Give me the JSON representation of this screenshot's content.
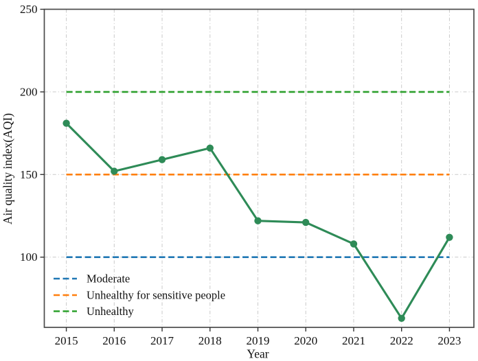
{
  "chart_data": {
    "type": "line",
    "title": "",
    "xlabel": "Year",
    "ylabel": "Air quality index(AQI)",
    "x": [
      2015,
      2016,
      2017,
      2018,
      2019,
      2020,
      2021,
      2022,
      2023
    ],
    "series": [
      {
        "name": "AQI",
        "values": [
          181,
          152,
          159,
          166,
          122,
          121,
          108,
          63,
          112
        ],
        "color": "#2e8b57",
        "marker": "circle",
        "line_style": "solid"
      }
    ],
    "reference_lines": [
      {
        "label": "Moderate",
        "value": 100,
        "color": "#1f77b4",
        "line_style": "dashed"
      },
      {
        "label": "Unhealthy for sensitive people",
        "value": 150,
        "color": "#ff7f0e",
        "line_style": "dashed"
      },
      {
        "label": "Unhealthy",
        "value": 200,
        "color": "#2ca02c",
        "line_style": "dashed"
      }
    ],
    "xticks": [
      2015,
      2016,
      2017,
      2018,
      2019,
      2020,
      2021,
      2022,
      2023
    ],
    "yticks": [
      100,
      150,
      200,
      250
    ],
    "xlim": [
      2014.54,
      2023.51
    ],
    "ylim": [
      57.5,
      250
    ],
    "grid": {
      "on": true,
      "style": "dash-dot",
      "color": "#c9c9c9"
    },
    "legend": {
      "position": "lower-left",
      "frame": false
    },
    "axis_color": "#4a4a4a",
    "tick_color": "#333333",
    "text_color": "#111111"
  }
}
